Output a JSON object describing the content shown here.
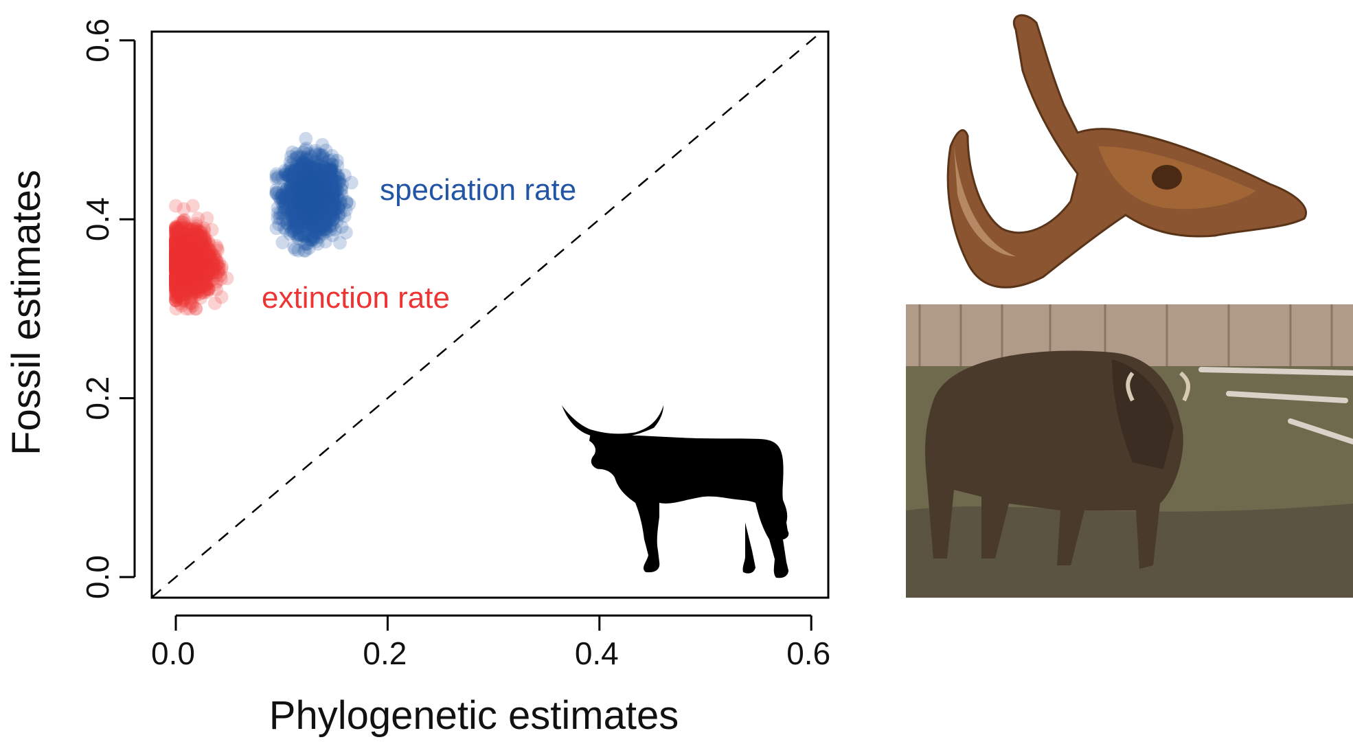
{
  "chart_data": {
    "type": "scatter",
    "xlabel": "Phylogenetic estimates",
    "ylabel": "Fossil estimates",
    "xlim": [
      -0.023,
      0.615
    ],
    "ylim": [
      -0.022,
      0.615
    ],
    "xticks": [
      "0.0",
      "0.2",
      "0.4",
      "0.6"
    ],
    "yticks": [
      "0.0",
      "0.2",
      "0.4",
      "0.6"
    ],
    "grid": false,
    "reference_line": {
      "type": "identity",
      "style": "dashed",
      "from": [
        -0.023,
        -0.023
      ],
      "to": [
        0.615,
        0.615
      ]
    },
    "series": [
      {
        "name": "speciation rate",
        "color": "#2255a4",
        "n_points": 1500,
        "x_mean": 0.128,
        "x_sd": 0.012,
        "y_mean": 0.425,
        "y_sd": 0.02,
        "x_range": [
          0.095,
          0.18
        ],
        "y_range": [
          0.365,
          0.49
        ]
      },
      {
        "name": "extinction rate",
        "color": "#ee3333",
        "n_points": 1500,
        "x_mean": 0.012,
        "x_sd": 0.011,
        "y_mean": 0.352,
        "y_sd": 0.018,
        "x_range": [
          0.0,
          0.075
        ],
        "y_range": [
          0.3,
          0.415
        ]
      }
    ]
  },
  "images": {
    "silhouette": "cow-silhouette",
    "skull": "bison-skull-photo",
    "bison": "bison-photo"
  }
}
